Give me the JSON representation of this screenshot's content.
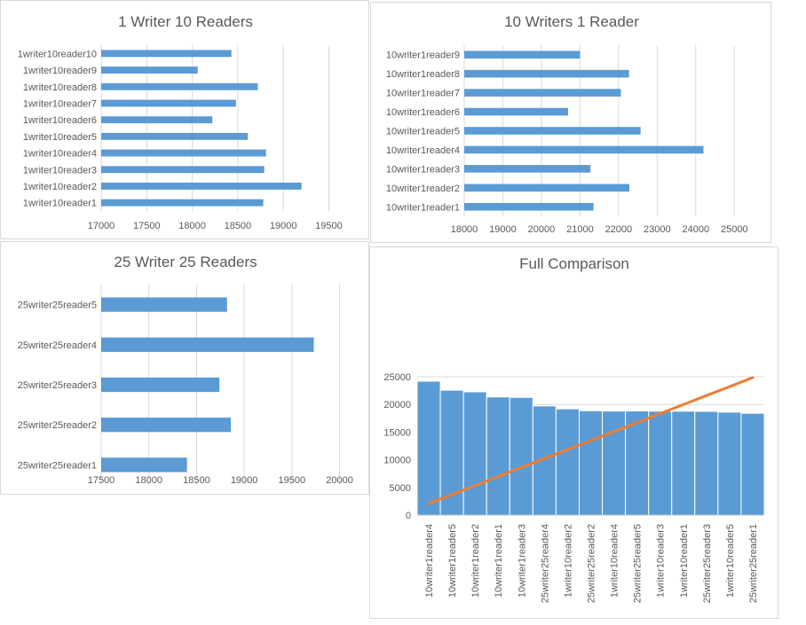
{
  "chart_data": [
    {
      "type": "bar",
      "orientation": "horizontal",
      "title": "1 Writer 10 Readers",
      "categories": [
        "1writer10reader1",
        "1writer10reader2",
        "1writer10reader3",
        "1writer10reader4",
        "1writer10reader5",
        "1writer10reader6",
        "1writer10reader7",
        "1writer10reader8",
        "1writer10reader9",
        "1writer10reader10"
      ],
      "values": [
        18780,
        19200,
        18790,
        18810,
        18610,
        18220,
        18480,
        18720,
        18060,
        18430
      ],
      "xlim": [
        17000,
        19700
      ],
      "ticks": [
        17000,
        17500,
        18000,
        18500,
        19000,
        19500
      ],
      "color": "#5b9bd5",
      "grid": true
    },
    {
      "type": "bar",
      "orientation": "horizontal",
      "title": "10 Writers 1 Reader",
      "categories": [
        "10writer1reader1",
        "10writer1reader2",
        "10writer1reader3",
        "10writer1reader4",
        "10writer1reader5",
        "10writer1reader6",
        "10writer1reader7",
        "10writer1reader8",
        "10writer1reader9"
      ],
      "values": [
        21350,
        22280,
        21270,
        24200,
        22570,
        20690,
        22060,
        22270,
        21000
      ],
      "xlim": [
        18000,
        25500
      ],
      "ticks": [
        18000,
        19000,
        20000,
        21000,
        22000,
        23000,
        24000,
        25000
      ],
      "color": "#5b9bd5",
      "grid": true
    },
    {
      "type": "bar",
      "orientation": "horizontal",
      "title": "25 Writer 25 Readers",
      "categories": [
        "25writer25reader1",
        "25writer25reader2",
        "25writer25reader3",
        "25writer25reader4",
        "25writer25reader5"
      ],
      "values": [
        18400,
        18860,
        18740,
        19730,
        18820
      ],
      "xlim": [
        17500,
        20200
      ],
      "ticks": [
        17500,
        18000,
        18500,
        19000,
        19500,
        20000
      ],
      "color": "#5b9bd5",
      "grid": true
    },
    {
      "type": "bar",
      "title": "Full Comparison",
      "categories": [
        "10writer1reader4",
        "10writer1reader5",
        "10writer1reader2",
        "10writer1reader1",
        "10writer1reader3",
        "25writer25reader4",
        "1writer10reader2",
        "25writer25reader2",
        "1writer10reader4",
        "25writer25reader5",
        "1writer10reader3",
        "1writer10reader1",
        "25writer25reader3",
        "1writer10reader5",
        "25writer25reader1"
      ],
      "values": [
        24200,
        22570,
        22280,
        21350,
        21270,
        19730,
        19200,
        18860,
        18810,
        18820,
        18790,
        18780,
        18740,
        18610,
        18400
      ],
      "ylim": [
        0,
        25000
      ],
      "ticks": [
        0,
        5000,
        10000,
        15000,
        20000,
        25000
      ],
      "color": "#5b9bd5",
      "line_color": "#ed7d31",
      "line_values": [
        2100,
        3720,
        5350,
        6970,
        8600,
        10220,
        11850,
        13470,
        15100,
        16720,
        18350,
        19970,
        21600,
        23220,
        24850
      ],
      "grid": true
    }
  ]
}
